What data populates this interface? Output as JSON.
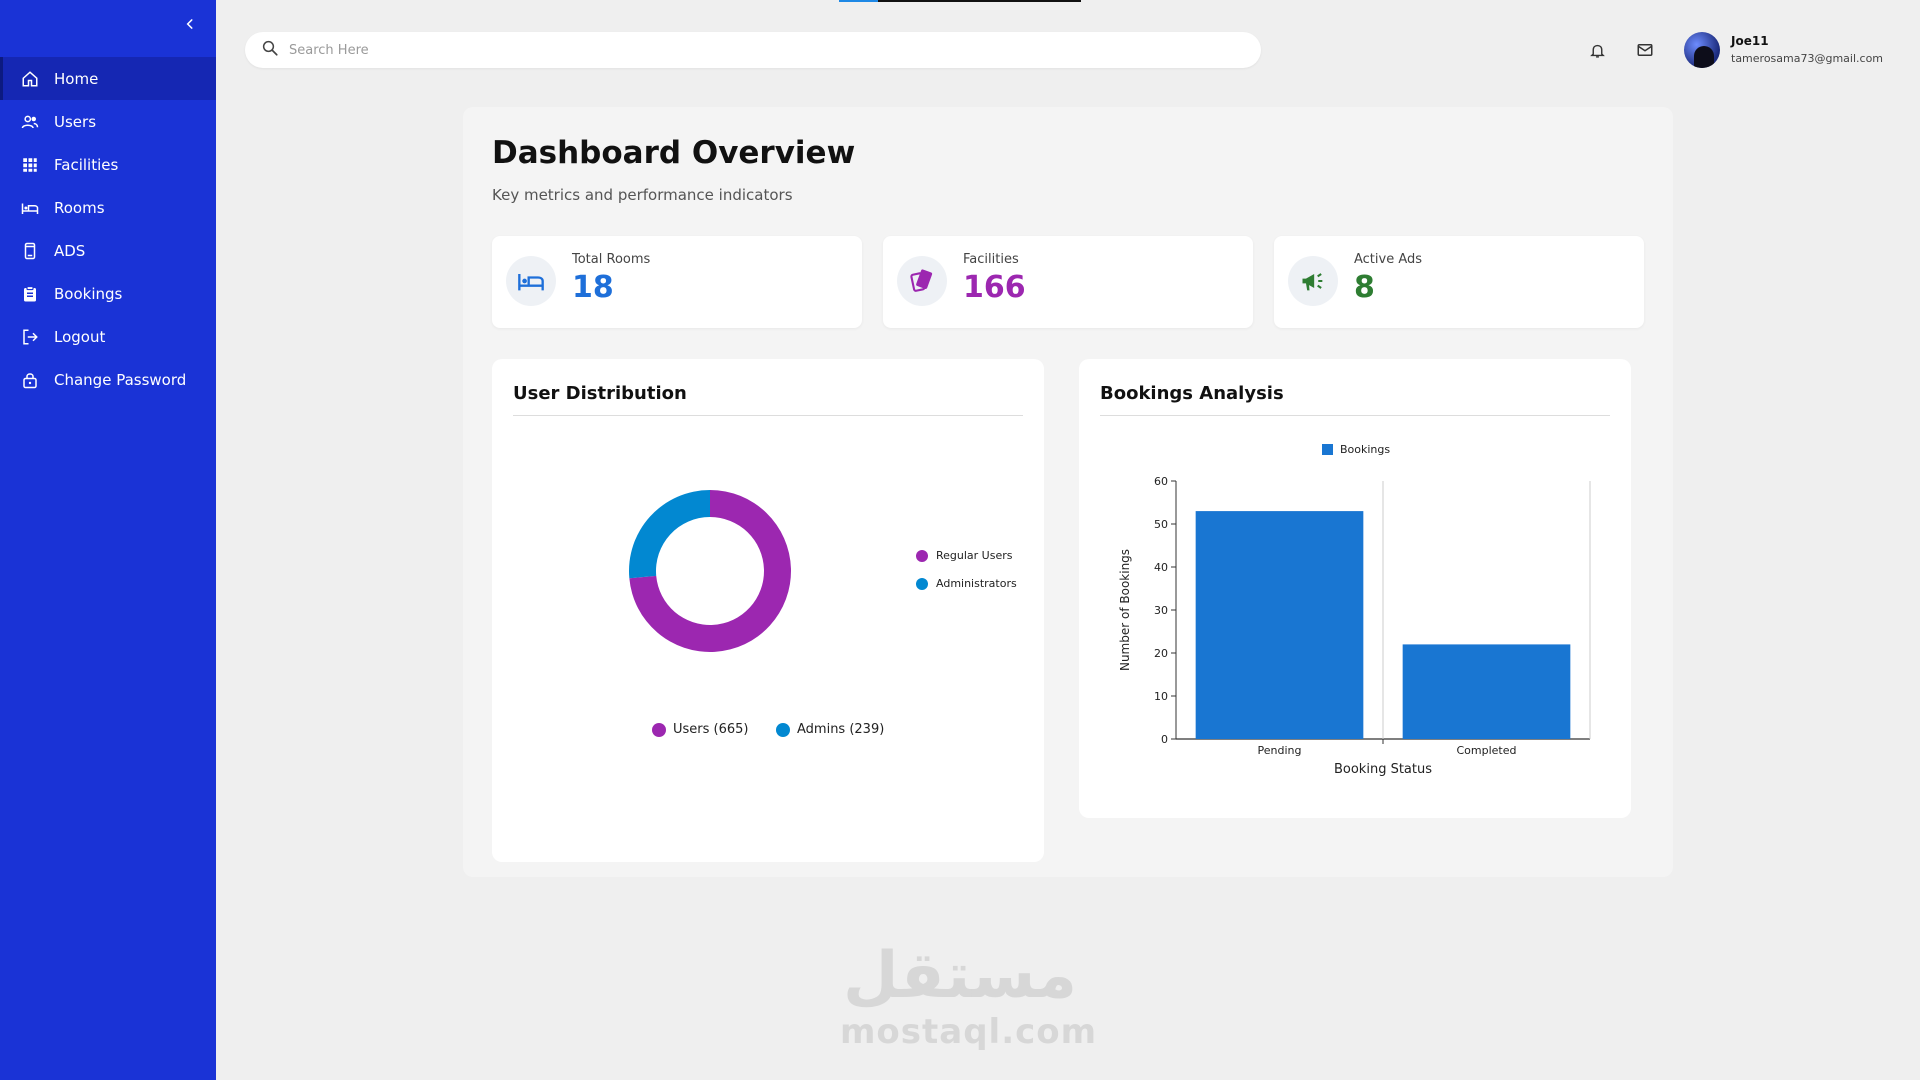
{
  "progress": 0.16,
  "sidebar": {
    "collapse_icon": "chevron-left-icon",
    "items": [
      {
        "label": "Home",
        "icon": "home-icon",
        "active": true
      },
      {
        "label": "Users",
        "icon": "users-icon",
        "active": false
      },
      {
        "label": "Facilities",
        "icon": "grid-icon",
        "active": false
      },
      {
        "label": "Rooms",
        "icon": "bed-icon",
        "active": false
      },
      {
        "label": "ADS",
        "icon": "phone-icon",
        "active": false
      },
      {
        "label": "Bookings",
        "icon": "clipboard-icon",
        "active": false
      },
      {
        "label": "Logout",
        "icon": "logout-icon",
        "active": false
      },
      {
        "label": "Change Password",
        "icon": "lock-icon",
        "active": false
      }
    ]
  },
  "header": {
    "search": {
      "placeholder": "Search Here",
      "value": ""
    },
    "user": {
      "name": "Joe11",
      "email": "tamerosama73@gmail.com"
    }
  },
  "main": {
    "title": "Dashboard Overview",
    "subtitle": "Key metrics and performance indicators",
    "stats": [
      {
        "label": "Total Rooms",
        "value": "18",
        "color": "#1e6fd9",
        "icon": "bed-icon"
      },
      {
        "label": "Facilities",
        "value": "166",
        "color": "#9c27b0",
        "icon": "cards-icon"
      },
      {
        "label": "Active Ads",
        "value": "8",
        "color": "#2e7d32",
        "icon": "megaphone-icon"
      }
    ]
  },
  "user_distribution": {
    "title": "User Distribution",
    "legend": [
      "Regular Users",
      "Administrators"
    ],
    "bottom_legend": [
      "Users (665)",
      "Admins (239)"
    ]
  },
  "bookings_analysis": {
    "title": "Bookings Analysis"
  },
  "watermark": {
    "arabic": "مستقل",
    "latin": "mostaql.com"
  },
  "chart_data": [
    {
      "type": "pie",
      "donut": true,
      "categories": [
        "Regular Users",
        "Administrators"
      ],
      "values": [
        665,
        239
      ],
      "colors": [
        "#9c27b0",
        "#0288d1"
      ]
    },
    {
      "type": "bar",
      "categories": [
        "Pending",
        "Completed"
      ],
      "series": [
        {
          "name": "Bookings",
          "values": [
            53,
            22
          ]
        }
      ],
      "xlabel": "Booking Status",
      "ylabel": "Number of Bookings",
      "ylim": [
        0,
        60
      ],
      "yticks": [
        0,
        10,
        20,
        30,
        40,
        50,
        60
      ],
      "color": "#1976d2",
      "legend": "top-center"
    }
  ]
}
